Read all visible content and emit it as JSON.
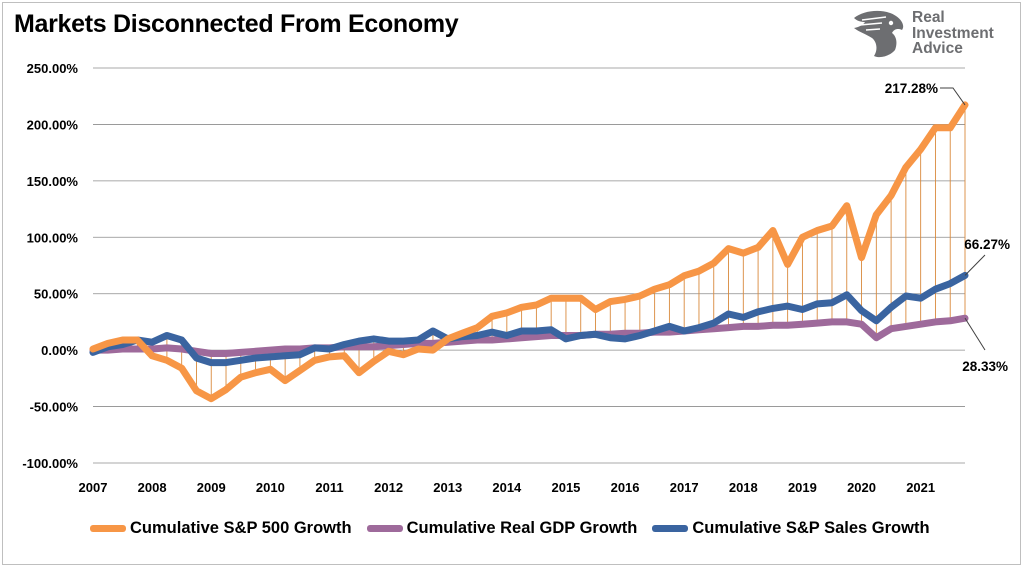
{
  "title": "Markets Disconnected From Economy",
  "logo": {
    "lines": [
      "Real",
      "Investment",
      "Advice"
    ],
    "icon": "eagle-head-icon"
  },
  "colors": {
    "sp500": "#f79646",
    "gdp": "#9e6a9b",
    "sales": "#3a64a0",
    "drop_lines": "#d98a3c",
    "grid": "#8c8c8c"
  },
  "chart_data": {
    "type": "line",
    "title": "Markets Disconnected From Economy",
    "xlabel": "",
    "ylabel": "",
    "x_start": 2007,
    "x_step": 0.25,
    "xticks": [
      "2007",
      "2008",
      "2009",
      "2010",
      "2011",
      "2012",
      "2013",
      "2014",
      "2015",
      "2016",
      "2017",
      "2018",
      "2019",
      "2020",
      "2021"
    ],
    "yticks": [
      "250.00%",
      "200.00%",
      "150.00%",
      "100.00%",
      "50.00%",
      "0.00%",
      "-50.00%",
      "-100.00%"
    ],
    "ylim": [
      -100,
      250
    ],
    "grid": true,
    "legend_position": "bottom",
    "series": [
      {
        "name": "Cumulative S&P 500 Growth",
        "color": "#f79646",
        "values": [
          1,
          6,
          9,
          9,
          -5,
          -9,
          -16,
          -36,
          -43,
          -35,
          -24,
          -20,
          -17,
          -27,
          -18,
          -9,
          -6,
          -5,
          -20,
          -10,
          -1,
          -4,
          1,
          0,
          10,
          15,
          20,
          30,
          33,
          38,
          40,
          46,
          46,
          46,
          36,
          43,
          45,
          48,
          54,
          58,
          66,
          70,
          77,
          90,
          86,
          91,
          106,
          76,
          100,
          106,
          110,
          128,
          82,
          120,
          137,
          162,
          178,
          197,
          197,
          217.28
        ]
      },
      {
        "name": "Cumulative Real GDP Growth",
        "color": "#9e6a9b",
        "values": [
          0,
          0,
          1,
          1,
          1,
          2,
          1,
          -1,
          -3,
          -3,
          -2,
          -1,
          0,
          1,
          1,
          2,
          2,
          3,
          3,
          3,
          4,
          5,
          6,
          6,
          7,
          8,
          9,
          9,
          10,
          11,
          12,
          13,
          13,
          13,
          14,
          14,
          15,
          15,
          16,
          16,
          17,
          18,
          19,
          20,
          21,
          21,
          22,
          22,
          23,
          24,
          25,
          25,
          23,
          11,
          19,
          21,
          23,
          25,
          26,
          28.33
        ]
      },
      {
        "name": "Cumulative S&P Sales Growth",
        "color": "#3a64a0",
        "values": [
          -2,
          3,
          5,
          9,
          7,
          13,
          9,
          -7,
          -11,
          -11,
          -9,
          -7,
          -6,
          -5,
          -4,
          2,
          1,
          5,
          8,
          10,
          8,
          8,
          9,
          17,
          10,
          12,
          13,
          16,
          13,
          17,
          17,
          18,
          10,
          13,
          14,
          11,
          10,
          13,
          17,
          21,
          17,
          20,
          24,
          32,
          29,
          34,
          37,
          39,
          36,
          41,
          42,
          49,
          35,
          26,
          38,
          48,
          46,
          54,
          59,
          66.27
        ]
      }
    ],
    "annotations": [
      {
        "series": 0,
        "label": "217.28%"
      },
      {
        "series": 2,
        "label": "66.27%"
      },
      {
        "series": 1,
        "label": "28.33%"
      }
    ]
  },
  "legend": [
    "Cumulative S&P 500 Growth",
    "Cumulative Real GDP Growth",
    "Cumulative S&P Sales Growth"
  ]
}
